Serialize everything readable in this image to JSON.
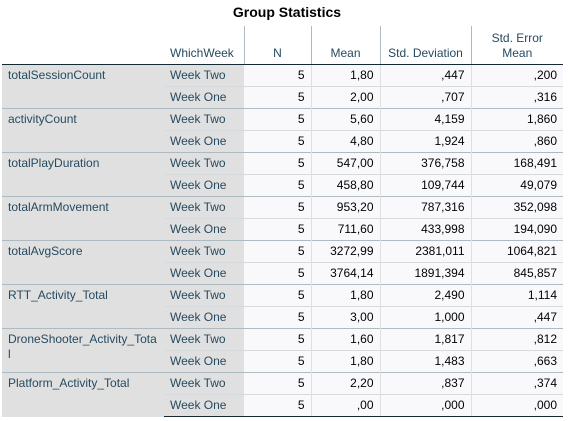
{
  "title": "Group Statistics",
  "headers": {
    "group_var": "WhichWeek",
    "n": "N",
    "mean": "Mean",
    "std_dev": "Std. Deviation",
    "std_err": "Std. Error Mean"
  },
  "rows": [
    {
      "variable": "totalSessionCount",
      "groups": [
        {
          "group": "Week Two",
          "n": "5",
          "mean": "1,80",
          "sd": ",447",
          "se": ",200"
        },
        {
          "group": "Week One",
          "n": "5",
          "mean": "2,00",
          "sd": ",707",
          "se": ",316"
        }
      ]
    },
    {
      "variable": "activityCount",
      "groups": [
        {
          "group": "Week Two",
          "n": "5",
          "mean": "5,60",
          "sd": "4,159",
          "se": "1,860"
        },
        {
          "group": "Week One",
          "n": "5",
          "mean": "4,80",
          "sd": "1,924",
          "se": ",860"
        }
      ]
    },
    {
      "variable": "totalPlayDuration",
      "groups": [
        {
          "group": "Week Two",
          "n": "5",
          "mean": "547,00",
          "sd": "376,758",
          "se": "168,491"
        },
        {
          "group": "Week One",
          "n": "5",
          "mean": "458,80",
          "sd": "109,744",
          "se": "49,079"
        }
      ]
    },
    {
      "variable": "totalArmMovement",
      "groups": [
        {
          "group": "Week Two",
          "n": "5",
          "mean": "953,20",
          "sd": "787,316",
          "se": "352,098"
        },
        {
          "group": "Week One",
          "n": "5",
          "mean": "711,60",
          "sd": "433,998",
          "se": "194,090"
        }
      ]
    },
    {
      "variable": "totalAvgScore",
      "groups": [
        {
          "group": "Week Two",
          "n": "5",
          "mean": "3272,99",
          "sd": "2381,011",
          "se": "1064,821"
        },
        {
          "group": "Week One",
          "n": "5",
          "mean": "3764,14",
          "sd": "1891,394",
          "se": "845,857"
        }
      ]
    },
    {
      "variable": "RTT_Activity_Total",
      "groups": [
        {
          "group": "Week Two",
          "n": "5",
          "mean": "1,80",
          "sd": "2,490",
          "se": "1,114"
        },
        {
          "group": "Week One",
          "n": "5",
          "mean": "3,00",
          "sd": "1,000",
          "se": ",447"
        }
      ]
    },
    {
      "variable": "DroneShooter_Activity_Total",
      "groups": [
        {
          "group": "Week Two",
          "n": "5",
          "mean": "1,60",
          "sd": "1,817",
          "se": ",812"
        },
        {
          "group": "Week One",
          "n": "5",
          "mean": "1,80",
          "sd": "1,483",
          "se": ",663"
        }
      ]
    },
    {
      "variable": "Platform_Activity_Total",
      "groups": [
        {
          "group": "Week Two",
          "n": "5",
          "mean": "2,20",
          "sd": ",837",
          "se": ",374"
        },
        {
          "group": "Week One",
          "n": "5",
          "mean": ",00",
          "sd": ",000",
          "se": ",000"
        }
      ]
    }
  ]
}
